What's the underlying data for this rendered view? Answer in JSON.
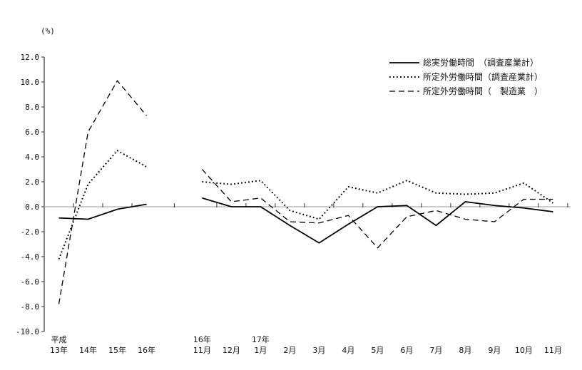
{
  "page": {
    "unit_label": "(%)"
  },
  "legend": {
    "items": [
      {
        "label": "総実労働時間　（調査産業計）",
        "style": "solid"
      },
      {
        "label": "所定外労働時間（調査産業計）",
        "style": "dotted"
      },
      {
        "label": "所定外労働時間（　製造業　）",
        "style": "dashed"
      }
    ]
  },
  "chart_data": {
    "type": "line",
    "title": "",
    "ylabel": "(%)",
    "ylim": [
      -10.0,
      12.0
    ],
    "ytick_step": 2.0,
    "grid": false,
    "line_color": "#000000",
    "zero_line_color": "#9a9a9a",
    "legend_position": "top-right",
    "x_groups": {
      "years": {
        "labels_top": [
          "平成",
          "",
          "",
          ""
        ],
        "labels": [
          "13年",
          "14年",
          "15年",
          "16年"
        ]
      },
      "months": {
        "labels_top": [
          "16年",
          "",
          "17年",
          "",
          "",
          "",
          "",
          "",
          "",
          "",
          "",
          "",
          ""
        ],
        "labels": [
          "11月",
          "12月",
          "1月",
          "2月",
          "3月",
          "4月",
          "5月",
          "6月",
          "7月",
          "8月",
          "9月",
          "10月",
          "11月"
        ]
      }
    },
    "series": [
      {
        "name": "総実労働時間　（調査産業計）",
        "style": "solid",
        "yearly": [
          -0.9,
          -1.0,
          -0.2,
          0.2
        ],
        "monthly": [
          0.7,
          0.0,
          0.0,
          -1.5,
          -2.9,
          -1.4,
          0.0,
          0.1,
          -1.5,
          0.4,
          0.1,
          -0.1,
          -0.4
        ]
      },
      {
        "name": "所定外労働時間（調査産業計）",
        "style": "dotted",
        "yearly": [
          -4.2,
          1.8,
          4.5,
          3.2
        ],
        "monthly": [
          2.0,
          1.8,
          2.1,
          -0.3,
          -1.0,
          1.6,
          1.1,
          2.1,
          1.1,
          1.0,
          1.1,
          1.9,
          0.3
        ]
      },
      {
        "name": "所定外労働時間（　製造業　）",
        "style": "dashed",
        "yearly": [
          -7.8,
          6.0,
          10.1,
          7.3
        ],
        "monthly": [
          3.0,
          0.4,
          0.7,
          -1.2,
          -1.3,
          -0.7,
          -3.3,
          -0.8,
          -0.3,
          -1.0,
          -1.2,
          0.6,
          0.6
        ]
      }
    ]
  }
}
